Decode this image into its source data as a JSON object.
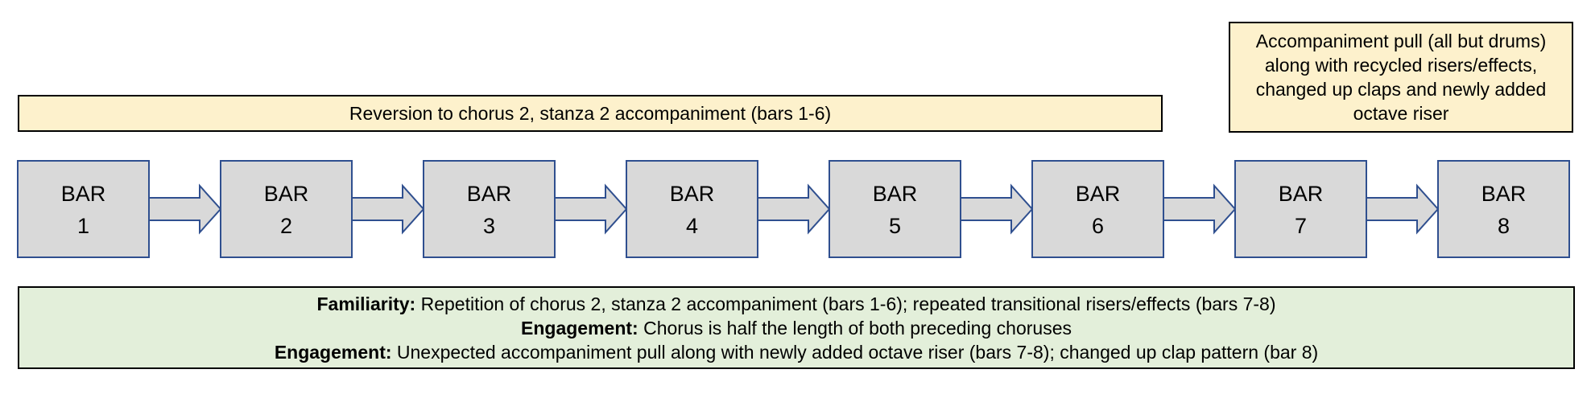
{
  "top_banner": "Reversion to chorus 2, stanza 2 accompaniment (bars 1-6)",
  "callout": {
    "lines": [
      "Accompaniment pull (all but drums)",
      "along with recycled risers/effects,",
      "changed up claps and newly added",
      "octave riser"
    ]
  },
  "bars": [
    {
      "word": "BAR",
      "number": "1"
    },
    {
      "word": "BAR",
      "number": "2"
    },
    {
      "word": "BAR",
      "number": "3"
    },
    {
      "word": "BAR",
      "number": "4"
    },
    {
      "word": "BAR",
      "number": "5"
    },
    {
      "word": "BAR",
      "number": "6"
    },
    {
      "word": "BAR",
      "number": "7"
    },
    {
      "word": "BAR",
      "number": "8"
    }
  ],
  "summary": [
    {
      "label": "Familiarity:",
      "text": " Repetition of chorus 2, stanza 2 accompaniment (bars 1-6); repeated transitional risers/effects (bars 7-8)"
    },
    {
      "label": "Engagement:",
      "text": " Chorus is half the length of both preceding choruses"
    },
    {
      "label": "Engagement:",
      "text": " Unexpected accompaniment pull along with newly added octave riser (bars 7-8); changed up clap pattern (bar 8)"
    }
  ],
  "colors": {
    "box_fill": "#d9d9d9",
    "box_stroke": "#2f4f8f",
    "note_fill": "#fdf1cc",
    "summary_fill": "#e3efda"
  }
}
